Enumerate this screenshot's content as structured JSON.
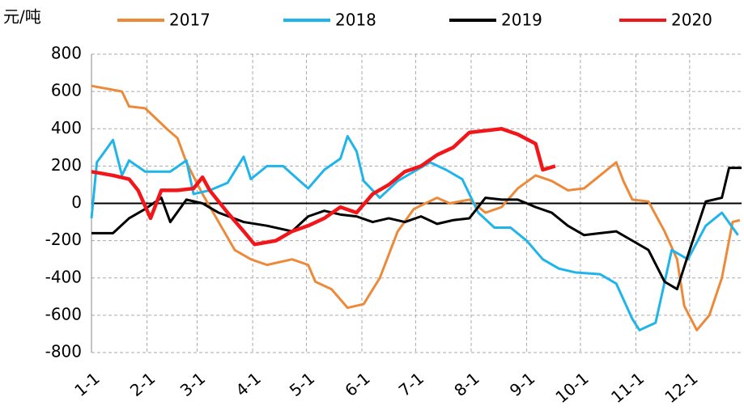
{
  "chart_data": {
    "type": "line",
    "y_label": "元/吨",
    "xlim": [
      0,
      363
    ],
    "xticks": [
      {
        "value": 0,
        "label": "1-1"
      },
      {
        "value": 31,
        "label": "2-1"
      },
      {
        "value": 59,
        "label": "3-1"
      },
      {
        "value": 90,
        "label": "4-1"
      },
      {
        "value": 120,
        "label": "5-1"
      },
      {
        "value": 151,
        "label": "6-1"
      },
      {
        "value": 181,
        "label": "7-1"
      },
      {
        "value": 212,
        "label": "8-1"
      },
      {
        "value": 243,
        "label": "9-1"
      },
      {
        "value": 273,
        "label": "10-1"
      },
      {
        "value": 304,
        "label": "11-1"
      },
      {
        "value": 334,
        "label": "12-1"
      }
    ],
    "ylim": [
      -800,
      800
    ],
    "yticks": [
      -800,
      -600,
      -400,
      -200,
      0,
      200,
      400,
      600,
      800
    ],
    "grid": true,
    "legend": "top",
    "series": [
      {
        "name": "2017",
        "color": "#ed8a3a",
        "x": [
          0,
          17,
          21,
          30,
          42,
          48,
          53,
          62,
          71,
          80,
          89,
          98,
          112,
          121,
          125,
          134,
          143,
          152,
          161,
          171,
          180,
          193,
          200,
          211,
          220,
          229,
          238,
          248,
          257,
          266,
          275,
          284,
          293,
          297,
          302,
          311,
          320,
          327,
          331,
          338,
          345,
          352,
          358,
          362
        ],
        "values": [
          630,
          600,
          520,
          510,
          400,
          350,
          220,
          50,
          -100,
          -250,
          -300,
          -330,
          -300,
          -330,
          -420,
          -460,
          -560,
          -540,
          -400,
          -150,
          -30,
          30,
          0,
          20,
          -50,
          -20,
          80,
          150,
          120,
          70,
          80,
          150,
          220,
          120,
          20,
          10,
          -150,
          -300,
          -550,
          -680,
          -600,
          -400,
          -100,
          -90
        ]
      },
      {
        "name": "2018",
        "color": "#1fb4ea",
        "x": [
          0,
          3,
          12,
          17,
          21,
          30,
          44,
          53,
          57,
          66,
          76,
          85,
          89,
          98,
          107,
          114,
          121,
          130,
          139,
          143,
          148,
          152,
          161,
          171,
          180,
          189,
          198,
          207,
          216,
          225,
          234,
          243,
          252,
          261,
          270,
          284,
          293,
          302,
          306,
          315,
          324,
          333,
          343,
          352,
          361
        ],
        "values": [
          -80,
          220,
          340,
          150,
          230,
          170,
          170,
          230,
          50,
          70,
          110,
          250,
          130,
          200,
          200,
          140,
          80,
          180,
          240,
          360,
          280,
          120,
          30,
          120,
          170,
          220,
          180,
          130,
          -50,
          -130,
          -130,
          -200,
          -300,
          -350,
          -370,
          -380,
          -430,
          -620,
          -680,
          -640,
          -250,
          -300,
          -120,
          -50,
          -170
        ]
      },
      {
        "name": "2019",
        "color": "#000000",
        "x": [
          0,
          12,
          21,
          30,
          39,
          44,
          53,
          62,
          71,
          85,
          98,
          112,
          121,
          130,
          139,
          148,
          157,
          166,
          175,
          184,
          193,
          202,
          211,
          220,
          229,
          238,
          248,
          257,
          266,
          275,
          284,
          293,
          302,
          311,
          320,
          327,
          333,
          343,
          352,
          356,
          363
        ],
        "values": [
          -160,
          -160,
          -80,
          -30,
          30,
          -100,
          20,
          0,
          -50,
          -100,
          -120,
          -150,
          -70,
          -40,
          -60,
          -70,
          -100,
          -80,
          -100,
          -70,
          -110,
          -90,
          -80,
          30,
          20,
          20,
          -20,
          -50,
          -120,
          -170,
          -160,
          -150,
          -200,
          -250,
          -420,
          -460,
          -280,
          10,
          30,
          190,
          190
        ]
      },
      {
        "name": "2020",
        "color": "#f2161a",
        "x": [
          0,
          12,
          21,
          26,
          33,
          39,
          48,
          57,
          62,
          66,
          76,
          85,
          91,
          103,
          112,
          121,
          130,
          139,
          148,
          157,
          166,
          175,
          184,
          193,
          202,
          211,
          220,
          229,
          238,
          248,
          252,
          259
        ],
        "values": [
          170,
          150,
          130,
          70,
          -80,
          70,
          70,
          80,
          140,
          70,
          -50,
          -150,
          -220,
          -200,
          -150,
          -120,
          -80,
          -20,
          -50,
          50,
          100,
          170,
          200,
          260,
          300,
          380,
          390,
          400,
          370,
          320,
          180,
          200
        ]
      }
    ]
  }
}
